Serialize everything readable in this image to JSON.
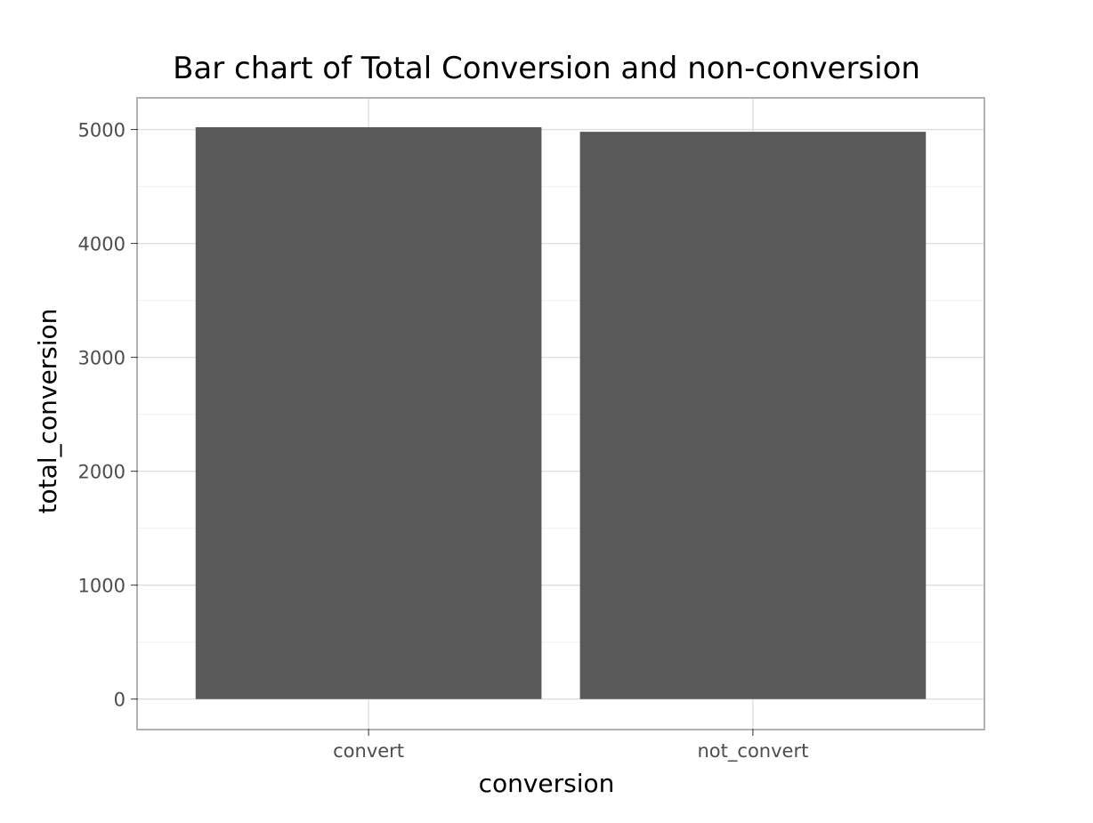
{
  "chart_data": {
    "type": "bar",
    "title": "Bar chart of Total Conversion and non-conversion",
    "xlabel": "conversion",
    "ylabel": "total_conversion",
    "categories": [
      "convert",
      "not_convert"
    ],
    "values": [
      5020,
      4980
    ],
    "ylim": [
      -260,
      5270
    ],
    "yticks": [
      0,
      1000,
      2000,
      3000,
      4000,
      5000
    ],
    "grid": true,
    "legend": "none",
    "colors": {
      "bar": "#595959",
      "panel_border": "#b3b3b3",
      "grid_major": "#dedede",
      "grid_minor": "#f0f0f0",
      "tick_text": "#4d4d4d",
      "title_text": "#000000"
    }
  }
}
